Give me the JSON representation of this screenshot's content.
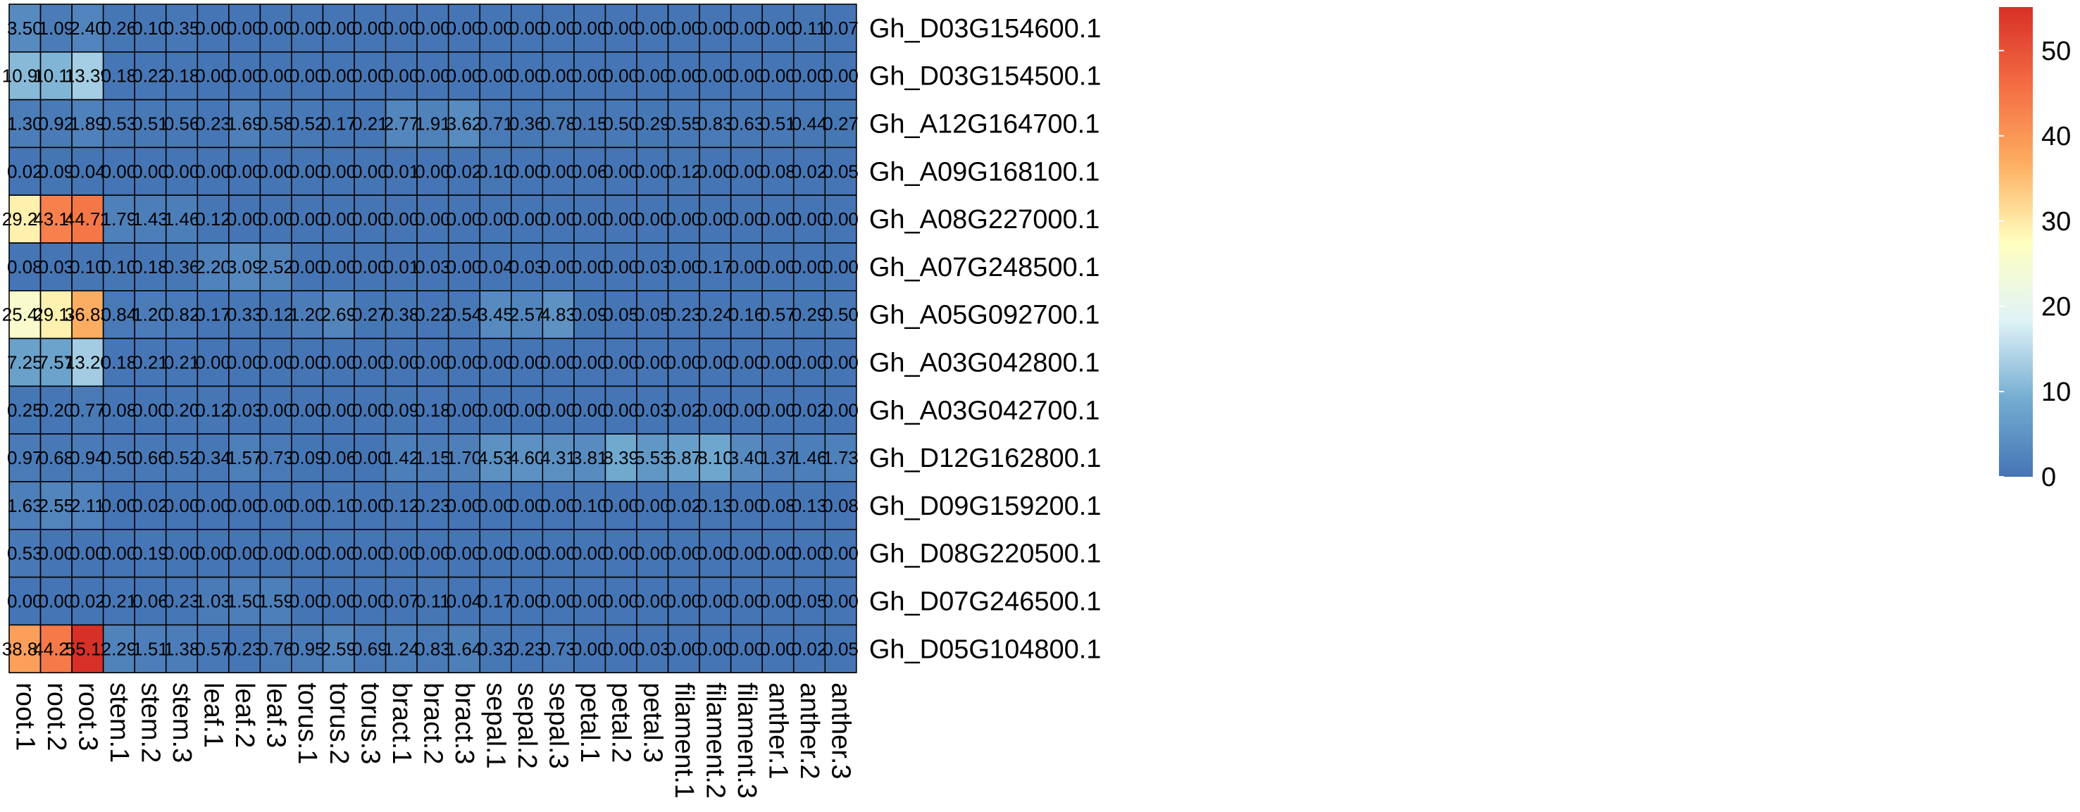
{
  "chart_data": {
    "type": "heatmap",
    "title": "",
    "columns": [
      "root.1",
      "root.2",
      "root.3",
      "stem.1",
      "stem.2",
      "stem.3",
      "leaf.1",
      "leaf.2",
      "leaf.3",
      "torus.1",
      "torus.2",
      "torus.3",
      "bract.1",
      "bract.2",
      "bract.3",
      "sepal.1",
      "sepal.2",
      "sepal.3",
      "petal.1",
      "petal.2",
      "petal.3",
      "filament.1",
      "filament.2",
      "filament.3",
      "anther.1",
      "anther.2",
      "anther.3"
    ],
    "rows": [
      "Gh_D03G154600.1",
      "Gh_D03G154500.1",
      "Gh_A12G164700.1",
      "Gh_A09G168100.1",
      "Gh_A08G227000.1",
      "Gh_A07G248500.1",
      "Gh_A05G092700.1",
      "Gh_A03G042800.1",
      "Gh_A03G042700.1",
      "Gh_D12G162800.1",
      "Gh_D09G159200.1",
      "Gh_D08G220500.1",
      "Gh_D07G246500.1",
      "Gh_D05G104800.1"
    ],
    "values": [
      [
        "3.50",
        "1.09",
        "2.40",
        "0.26",
        "0.10",
        "0.35",
        "0.00",
        "0.00",
        "0.00",
        "0.00",
        "0.00",
        "0.00",
        "0.00",
        "0.00",
        "0.00",
        "0.00",
        "0.00",
        "0.00",
        "0.00",
        "0.00",
        "0.00",
        "0.00",
        "0.00",
        "0.00",
        "0.00",
        "0.11",
        "0.07"
      ],
      [
        "10.90",
        "10.18",
        "13.39",
        "0.18",
        "0.22",
        "0.18",
        "0.00",
        "0.00",
        "0.00",
        "0.00",
        "0.00",
        "0.00",
        "0.00",
        "0.00",
        "0.00",
        "0.00",
        "0.00",
        "0.00",
        "0.00",
        "0.00",
        "0.00",
        "0.00",
        "0.00",
        "0.00",
        "0.00",
        "0.00",
        "0.00"
      ],
      [
        "1.30",
        "0.92",
        "1.89",
        "0.53",
        "0.51",
        "0.56",
        "0.23",
        "1.69",
        "0.58",
        "0.52",
        "0.17",
        "0.21",
        "2.77",
        "1.91",
        "3.62",
        "0.71",
        "0.36",
        "0.78",
        "0.15",
        "0.50",
        "0.29",
        "0.55",
        "0.83",
        "0.63",
        "0.51",
        "0.44",
        "0.27"
      ],
      [
        "0.02",
        "0.09",
        "0.04",
        "0.00",
        "0.00",
        "0.00",
        "0.00",
        "0.00",
        "0.00",
        "0.00",
        "0.00",
        "0.00",
        "0.01",
        "0.00",
        "0.02",
        "0.10",
        "0.00",
        "0.00",
        "0.06",
        "0.00",
        "0.00",
        "0.12",
        "0.00",
        "0.00",
        "0.08",
        "0.02",
        "0.05"
      ],
      [
        "29.27",
        "43.19",
        "44.72",
        "1.79",
        "1.43",
        "1.46",
        "0.12",
        "0.00",
        "0.00",
        "0.00",
        "0.00",
        "0.00",
        "0.00",
        "0.00",
        "0.00",
        "0.00",
        "0.00",
        "0.00",
        "0.00",
        "0.00",
        "0.00",
        "0.00",
        "0.00",
        "0.00",
        "0.00",
        "0.00",
        "0.00"
      ],
      [
        "0.08",
        "0.03",
        "0.10",
        "0.10",
        "0.18",
        "0.36",
        "2.20",
        "3.09",
        "2.52",
        "0.00",
        "0.00",
        "0.00",
        "0.01",
        "0.03",
        "0.00",
        "0.04",
        "0.03",
        "0.00",
        "0.00",
        "0.00",
        "0.03",
        "0.00",
        "0.17",
        "0.00",
        "0.00",
        "0.00",
        "0.00"
      ],
      [
        "25.43",
        "29.14",
        "36.83",
        "0.84",
        "1.20",
        "0.82",
        "0.17",
        "0.33",
        "0.12",
        "1.20",
        "2.69",
        "0.27",
        "0.38",
        "0.22",
        "0.54",
        "3.45",
        "2.57",
        "4.83",
        "0.09",
        "0.05",
        "0.05",
        "0.23",
        "0.24",
        "0.16",
        "0.57",
        "0.29",
        "0.50"
      ],
      [
        "7.25",
        "7.57",
        "13.20",
        "0.18",
        "0.21",
        "0.21",
        "0.00",
        "0.00",
        "0.00",
        "0.00",
        "0.00",
        "0.00",
        "0.00",
        "0.00",
        "0.00",
        "0.00",
        "0.00",
        "0.00",
        "0.00",
        "0.00",
        "0.00",
        "0.00",
        "0.00",
        "0.00",
        "0.00",
        "0.00",
        "0.00"
      ],
      [
        "0.25",
        "0.20",
        "0.77",
        "0.08",
        "0.00",
        "0.20",
        "0.12",
        "0.03",
        "0.00",
        "0.00",
        "0.00",
        "0.00",
        "0.09",
        "0.18",
        "0.00",
        "0.00",
        "0.00",
        "0.00",
        "0.00",
        "0.00",
        "0.03",
        "0.02",
        "0.00",
        "0.00",
        "0.00",
        "0.02",
        "0.00"
      ],
      [
        "0.97",
        "0.68",
        "0.94",
        "0.50",
        "0.66",
        "0.52",
        "0.34",
        "1.57",
        "0.73",
        "0.09",
        "0.06",
        "0.00",
        "1.42",
        "1.15",
        "1.70",
        "4.53",
        "4.60",
        "4.31",
        "3.81",
        "8.39",
        "5.53",
        "6.87",
        "8.10",
        "3.40",
        "1.37",
        "1.46",
        "1.73"
      ],
      [
        "1.63",
        "2.55",
        "2.11",
        "0.00",
        "0.02",
        "0.00",
        "0.00",
        "0.00",
        "0.00",
        "0.00",
        "0.10",
        "0.00",
        "0.12",
        "0.23",
        "0.00",
        "0.00",
        "0.00",
        "0.00",
        "0.10",
        "0.00",
        "0.00",
        "0.02",
        "0.13",
        "0.00",
        "0.08",
        "0.13",
        "0.08"
      ],
      [
        "0.53",
        "0.00",
        "0.00",
        "0.00",
        "0.19",
        "0.00",
        "0.00",
        "0.00",
        "0.00",
        "0.00",
        "0.00",
        "0.00",
        "0.00",
        "0.00",
        "0.00",
        "0.00",
        "0.00",
        "0.00",
        "0.00",
        "0.00",
        "0.00",
        "0.00",
        "0.00",
        "0.00",
        "0.00",
        "0.00",
        "0.00"
      ],
      [
        "0.00",
        "0.00",
        "0.02",
        "0.21",
        "0.06",
        "0.23",
        "1.03",
        "1.50",
        "1.59",
        "0.00",
        "0.00",
        "0.00",
        "0.07",
        "0.11",
        "0.04",
        "0.17",
        "0.00",
        "0.00",
        "0.00",
        "0.00",
        "0.00",
        "0.00",
        "0.00",
        "0.00",
        "0.00",
        "0.05",
        "0.00"
      ],
      [
        "38.82",
        "44.21",
        "55.11",
        "2.29",
        "1.51",
        "1.38",
        "0.57",
        "0.23",
        "0.76",
        "0.95",
        "2.59",
        "0.69",
        "1.24",
        "0.83",
        "1.64",
        "0.32",
        "0.23",
        "0.73",
        "0.00",
        "0.00",
        "0.03",
        "0.00",
        "0.00",
        "0.00",
        "0.00",
        "0.02",
        "0.05"
      ]
    ],
    "color_scale": {
      "range": [
        0,
        55.11
      ],
      "ticks": [
        "0",
        "10",
        "20",
        "30",
        "40",
        "50"
      ],
      "colors": [
        "#4575b4",
        "#74add1",
        "#e0f3f8",
        "#ffffbf",
        "#fdae61",
        "#f46d43",
        "#d73027"
      ]
    },
    "legend_position": "right"
  }
}
